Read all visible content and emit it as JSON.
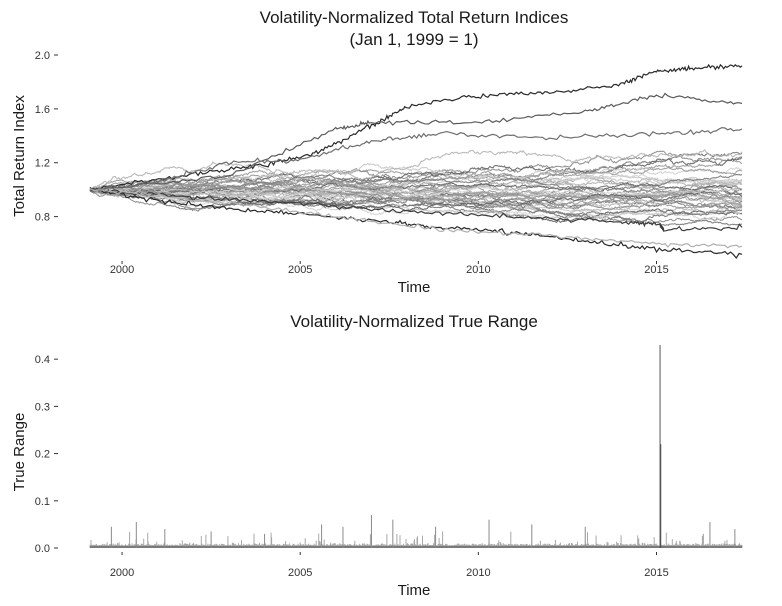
{
  "chart_data": [
    {
      "type": "line",
      "title": "Volatility-Normalized Total Return Indices",
      "subtitle": "(Jan 1, 1999 = 1)",
      "xlabel": "Time",
      "ylabel": "Total Return Index",
      "xlim": [
        1999.1,
        2017.4
      ],
      "ylim": [
        0.5,
        2.0
      ],
      "x_ticks": [
        2000,
        2005,
        2010,
        2015
      ],
      "x_tick_labels": [
        "2000",
        "2005",
        "2010",
        "2015"
      ],
      "y_ticks": [
        0.8,
        1.2,
        1.6,
        2.0
      ],
      "y_tick_labels": [
        "0.8",
        "1.2",
        "1.6",
        "2.0"
      ],
      "grid": false,
      "legend": "none",
      "series_count": 40,
      "start_value": 1.0,
      "highlighted_series": [
        {
          "x": [
            1999.1,
            2002.0,
            2004.0,
            2005.5,
            2007.0,
            2008.0,
            2010.0,
            2012.0,
            2014.0,
            2015.0,
            2016.0,
            2017.4
          ],
          "values": [
            1.0,
            1.12,
            1.18,
            1.28,
            1.47,
            1.62,
            1.7,
            1.72,
            1.78,
            1.88,
            1.9,
            1.92
          ]
        },
        {
          "x": [
            1999.1,
            2003.0,
            2006.0,
            2007.0,
            2010.0,
            2013.0,
            2015.0,
            2017.4
          ],
          "values": [
            1.0,
            1.1,
            1.45,
            1.5,
            1.5,
            1.58,
            1.7,
            1.64
          ]
        },
        {
          "x": [
            1999.1,
            2001.0,
            2003.0,
            2005.0,
            2007.5,
            2009.0,
            2011.0,
            2013.0,
            2015.0,
            2017.4
          ],
          "values": [
            1.0,
            0.92,
            0.86,
            0.82,
            0.76,
            0.72,
            0.68,
            0.62,
            0.56,
            0.52
          ]
        },
        {
          "x": [
            1999.1,
            2002.0,
            2005.0,
            2008.0,
            2011.0,
            2014.0,
            2015.1,
            2015.2,
            2017.4
          ],
          "values": [
            1.0,
            0.94,
            0.9,
            0.84,
            0.8,
            0.76,
            0.74,
            0.7,
            0.72
          ]
        },
        {
          "x": [
            1999.1,
            2001.0,
            2003.0,
            2005.0,
            2007.0,
            2009.0,
            2012.0,
            2015.0,
            2017.4
          ],
          "values": [
            1.0,
            1.06,
            1.2,
            1.22,
            1.36,
            1.42,
            1.38,
            1.42,
            1.45
          ]
        },
        {
          "x": [
            1999.1,
            2003.0,
            2006.0,
            2009.0,
            2012.0,
            2015.0,
            2017.4
          ],
          "values": [
            1.0,
            0.9,
            0.8,
            0.7,
            0.66,
            0.6,
            0.58
          ]
        }
      ]
    },
    {
      "type": "line",
      "title": "Volatility-Normalized True Range",
      "xlabel": "Time",
      "ylabel": "True Range",
      "xlim": [
        1999.1,
        2017.4
      ],
      "ylim": [
        0.0,
        0.43
      ],
      "x_ticks": [
        2000,
        2005,
        2010,
        2015
      ],
      "x_tick_labels": [
        "2000",
        "2005",
        "2010",
        "2015"
      ],
      "y_ticks": [
        0.0,
        0.1,
        0.2,
        0.3,
        0.4
      ],
      "y_tick_labels": [
        "0.0",
        "0.1",
        "0.2",
        "0.3",
        "0.4"
      ],
      "grid": false,
      "legend": "none",
      "baseline_value": 0.005,
      "typical_max": 0.05,
      "spikes": [
        {
          "x": 1999.7,
          "value": 0.045
        },
        {
          "x": 2000.4,
          "value": 0.055
        },
        {
          "x": 2001.2,
          "value": 0.04
        },
        {
          "x": 2002.5,
          "value": 0.035
        },
        {
          "x": 2004.0,
          "value": 0.03
        },
        {
          "x": 2005.6,
          "value": 0.05
        },
        {
          "x": 2006.2,
          "value": 0.045
        },
        {
          "x": 2007.0,
          "value": 0.07
        },
        {
          "x": 2007.6,
          "value": 0.06
        },
        {
          "x": 2008.8,
          "value": 0.045
        },
        {
          "x": 2010.3,
          "value": 0.06
        },
        {
          "x": 2011.5,
          "value": 0.05
        },
        {
          "x": 2013.0,
          "value": 0.045
        },
        {
          "x": 2015.1,
          "value": 0.43
        },
        {
          "x": 2015.12,
          "value": 0.22
        },
        {
          "x": 2016.5,
          "value": 0.055
        },
        {
          "x": 2017.2,
          "value": 0.04
        }
      ]
    }
  ]
}
